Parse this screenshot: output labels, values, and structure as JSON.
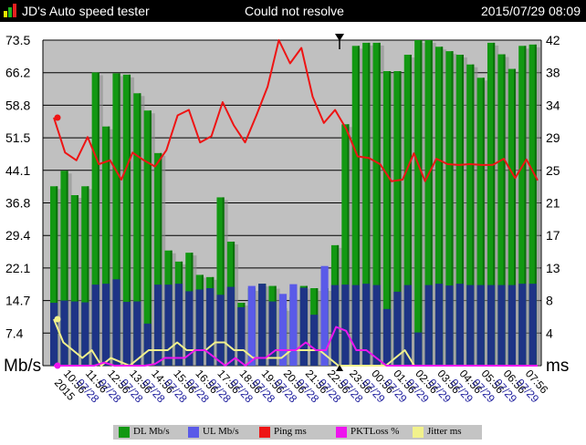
{
  "app": {
    "title": "JD's Auto speed tester",
    "status": "Could not resolve",
    "timestamp": "2015/07/29 08:09"
  },
  "colors": {
    "dl": "#129812",
    "dl_dark": "#0b6f0b",
    "ul": "#5a5ae8",
    "ul_navy": "#1e3486",
    "ping": "#ee1414",
    "pktloss": "#ee14ee",
    "jitter": "#f2f28c",
    "plot_bg": "#c0c0c0",
    "legend_bg": "#c4c4c4"
  },
  "chart_data": {
    "type": "bar",
    "grid": true,
    "left_axis": {
      "unit": "Mb/s",
      "ticks": [
        "73.5",
        "66.2",
        "58.8",
        "51.5",
        "44.1",
        "36.8",
        "29.4",
        "22.1",
        "14.7",
        "7.4"
      ],
      "ylim": [
        0,
        73.5
      ]
    },
    "right_axis": {
      "unit": "ms",
      "ticks": [
        "42",
        "38",
        "34",
        "29",
        "25",
        "21",
        "17",
        "13",
        "8",
        "4"
      ],
      "ylim": [
        0,
        42
      ]
    },
    "x_labels": [
      {
        "time": "10:56",
        "date": "2015"
      },
      {
        "time": "11:56",
        "date": "07/28"
      },
      {
        "time": "12:56",
        "date": "07/28"
      },
      {
        "time": "13:56",
        "date": "07/28"
      },
      {
        "time": "14:56",
        "date": "07/28"
      },
      {
        "time": "15:56",
        "date": "07/28"
      },
      {
        "time": "16:56",
        "date": "07/28"
      },
      {
        "time": "17:56",
        "date": "07/28"
      },
      {
        "time": "18:56",
        "date": "07/28"
      },
      {
        "time": "19:56",
        "date": "07/28"
      },
      {
        "time": "20:56",
        "date": "07/28"
      },
      {
        "time": "21:56",
        "date": "07/28"
      },
      {
        "time": "22:56",
        "date": "07/28"
      },
      {
        "time": "23:56",
        "date": "07/28"
      },
      {
        "time": "00:56",
        "date": "07/29"
      },
      {
        "time": "01:56",
        "date": "07/29"
      },
      {
        "time": "02:56",
        "date": "07/29"
      },
      {
        "time": "03:56",
        "date": "07/29"
      },
      {
        "time": "04:56",
        "date": "07/29"
      },
      {
        "time": "05:56",
        "date": "07/29"
      },
      {
        "time": "06:56",
        "date": "07/29"
      },
      {
        "time": "07:56",
        "date": "07/29"
      }
    ],
    "series": [
      {
        "name": "DL Mb/s",
        "axis": "left",
        "values": [
          40.5,
          44,
          38.5,
          40.5,
          66.2,
          54,
          66,
          65.7,
          61.5,
          57.6,
          48,
          26,
          23.5,
          25.5,
          20.5,
          20,
          38,
          28,
          14.2,
          17.5,
          18.5,
          18,
          13,
          15.5,
          18,
          17.5,
          17.5,
          27.2,
          54.5,
          72.2,
          72.9,
          72.9,
          66.5,
          66.5,
          70.2,
          73.5,
          73.5,
          72,
          71,
          70.2,
          68,
          65,
          72.9,
          70.3,
          67,
          72.2,
          72.5
        ]
      },
      {
        "name": "UL Mb/s",
        "axis": "left",
        "values": [
          14.2,
          14.7,
          14.5,
          14.3,
          18.3,
          18.5,
          19.5,
          14.4,
          14.5,
          9.5,
          18.3,
          18.3,
          18.5,
          16.8,
          17.2,
          17.5,
          16,
          17.8,
          13.2,
          18,
          18.5,
          14.5,
          16.2,
          18.4,
          17.6,
          11.5,
          22.5,
          18.2,
          18.3,
          18.2,
          18.5,
          18.2,
          12.8,
          16.7,
          18.2,
          7.5,
          18.2,
          18.5,
          18.1,
          18.5,
          18.2,
          18.2,
          18.2,
          18.2,
          18.2,
          18.5,
          18.5
        ]
      },
      {
        "name": "Ping ms",
        "axis": "right",
        "values": [
          32,
          27.5,
          26.5,
          29.5,
          26,
          26.5,
          24,
          27.5,
          26.5,
          25.7,
          27.8,
          32.3,
          33,
          28.8,
          29.6,
          34,
          31,
          28.8,
          32.3,
          36,
          42,
          39,
          41,
          34.7,
          31.3,
          33,
          30.5,
          27,
          26.8,
          26,
          23.8,
          24,
          27.4,
          23.8,
          26.7,
          26,
          25.9,
          26,
          25.9,
          25.9,
          26.7,
          24.2,
          26.6,
          23.9
        ]
      },
      {
        "name": "PKTLoss %",
        "axis": "right",
        "values": [
          0,
          0,
          0,
          0,
          0,
          0.4,
          0,
          0,
          0,
          0,
          0.2,
          1,
          1,
          1,
          2,
          2,
          1,
          0,
          1,
          0,
          1,
          1,
          2,
          2,
          2,
          3,
          2,
          2,
          5,
          4.5,
          2,
          2,
          1,
          0,
          0,
          0,
          0,
          0,
          0,
          0,
          0,
          0,
          0,
          0,
          0,
          0,
          0,
          0,
          0
        ]
      },
      {
        "name": "Jitter ms",
        "axis": "right",
        "values": [
          6,
          3,
          2,
          1,
          2,
          0,
          1,
          0.5,
          0,
          1,
          2,
          2,
          2,
          3,
          2,
          2,
          2,
          3,
          3,
          2,
          2,
          1,
          1,
          1,
          1,
          2,
          2,
          2,
          2,
          1,
          0,
          0,
          0,
          0,
          0,
          0,
          1,
          2,
          0,
          0,
          0,
          0,
          0,
          0,
          0,
          0,
          0,
          0,
          0,
          0,
          0,
          0
        ]
      }
    ],
    "legend": [
      "DL Mb/s",
      "UL Mb/s",
      "Ping ms",
      "PKTLoss %",
      "Jitter ms"
    ],
    "legend_placement": "bottom"
  }
}
